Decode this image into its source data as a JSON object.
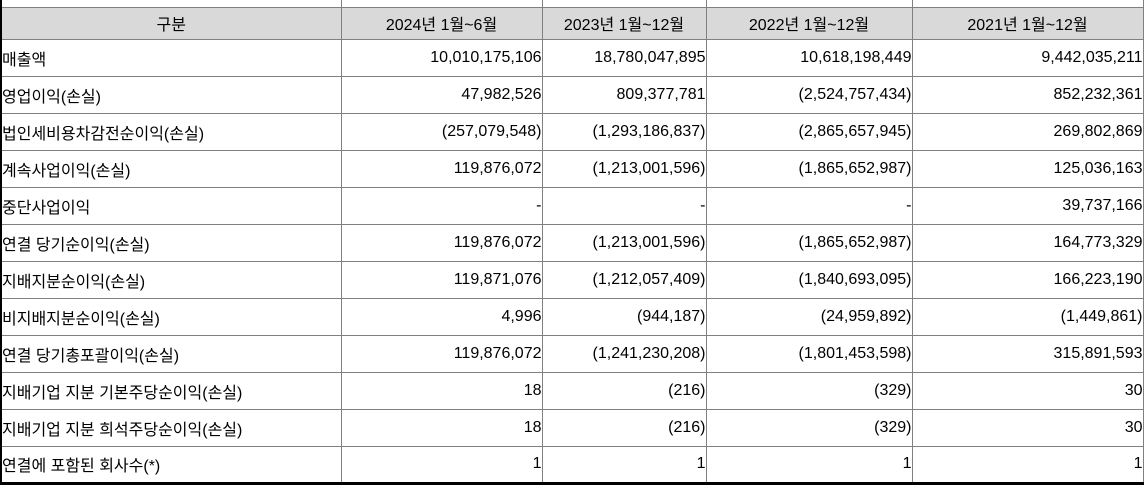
{
  "table": {
    "colors": {
      "header_bg": "#d9d9d9",
      "grid_line": "#808080",
      "outer_border": "#000000",
      "text": "#000000"
    },
    "header": {
      "label_col": "구분",
      "periods": [
        "2024년 1월~6월",
        "2023년 1월~12월",
        "2022년 1월~12월",
        "2021년 1월~12월"
      ]
    },
    "rows": [
      {
        "label": "매출액",
        "values": [
          "10,010,175,106",
          "18,780,047,895",
          "10,618,198,449",
          "9,442,035,211"
        ]
      },
      {
        "label": "영업이익(손실)",
        "values": [
          "47,982,526",
          "809,377,781",
          "(2,524,757,434)",
          "852,232,361"
        ]
      },
      {
        "label": "법인세비용차감전순이익(손실)",
        "values": [
          "(257,079,548)",
          "(1,293,186,837)",
          "(2,865,657,945)",
          "269,802,869"
        ]
      },
      {
        "label": "계속사업이익(손실)",
        "values": [
          "119,876,072",
          "(1,213,001,596)",
          "(1,865,652,987)",
          "125,036,163"
        ]
      },
      {
        "label": "중단사업이익",
        "values": [
          "-",
          "-",
          "-",
          "39,737,166"
        ]
      },
      {
        "label": "연결 당기순이익(손실)",
        "values": [
          "119,876,072",
          "(1,213,001,596)",
          "(1,865,652,987)",
          "164,773,329"
        ]
      },
      {
        "label": "지배지분순이익(손실)",
        "values": [
          "119,871,076",
          "(1,212,057,409)",
          "(1,840,693,095)",
          "166,223,190"
        ]
      },
      {
        "label": "비지배지분순이익(손실)",
        "values": [
          "4,996",
          "(944,187)",
          "(24,959,892)",
          "(1,449,861)"
        ]
      },
      {
        "label": "연결 당기총포괄이익(손실)",
        "values": [
          "119,876,072",
          "(1,241,230,208)",
          "(1,801,453,598)",
          "315,891,593"
        ]
      },
      {
        "label": "지배기업 지분 기본주당순이익(손실)",
        "values": [
          "18",
          "(216)",
          "(329)",
          "30"
        ]
      },
      {
        "label": "지배기업 지분 희석주당순이익(손실)",
        "values": [
          "18",
          "(216)",
          "(329)",
          "30"
        ]
      },
      {
        "label": "연결에 포함된 회사수(*)",
        "values": [
          "1",
          "1",
          "1",
          "1"
        ]
      }
    ]
  }
}
